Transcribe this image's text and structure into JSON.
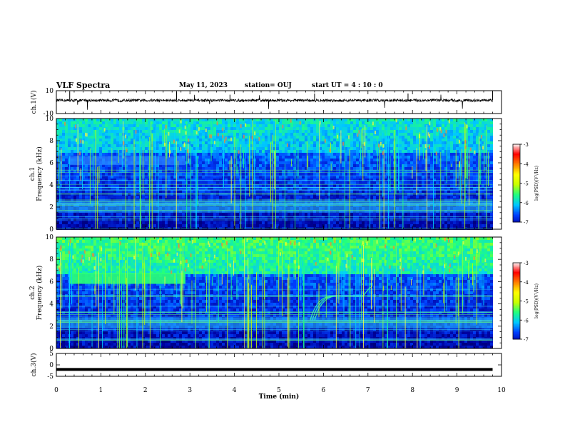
{
  "header": {
    "title": "VLF Spectra",
    "date": "May 11, 2023",
    "station": "station= OUJ",
    "start": "start  UT =  4 : 10 : 0"
  },
  "chart_data": [
    {
      "type": "line",
      "panel": "waveform-ch1",
      "ylabel": "ch.1(V)",
      "ylim": [
        -10,
        10
      ],
      "y_ticks": [
        "10",
        "-10"
      ],
      "xlim": [
        0,
        10
      ],
      "description_series": [
        {
          "name": "ch.1 amplitude",
          "baseline": 1.5,
          "noise": 1.0
        }
      ]
    },
    {
      "type": "heatmap",
      "panel": "spectrogram-ch1",
      "ylabel": [
        "ch.1",
        "Frequency  (kHz)"
      ],
      "ylim": [
        0,
        10
      ],
      "y_ticks": [
        "0",
        "2",
        "4",
        "6",
        "8",
        "10"
      ],
      "xlim": [
        0,
        10
      ],
      "band_features": [
        {
          "name": "hiss-band",
          "x_range": [
            0.3,
            2.9
          ],
          "f_range": [
            5.8,
            6.6
          ]
        },
        {
          "name": "low-band",
          "x_range": [
            0,
            9.8
          ],
          "f_range": [
            1.5,
            2.6
          ]
        }
      ],
      "colorbar": {
        "label": "log(PSD)(V²/Hz)",
        "range": [
          -7,
          -3
        ],
        "ticks": [
          "-3",
          "-4",
          "-5",
          "-6",
          "-7"
        ]
      }
    },
    {
      "type": "heatmap",
      "panel": "spectrogram-ch2",
      "ylabel": [
        "ch.2",
        "Frequency  (kHz)"
      ],
      "ylim": [
        0,
        10
      ],
      "y_ticks": [
        "0",
        "2",
        "4",
        "6",
        "8",
        "10"
      ],
      "xlim": [
        0,
        10
      ],
      "band_features": [
        {
          "name": "hiss-band",
          "x_range": [
            0.3,
            2.9
          ],
          "f_range": [
            5.8,
            6.8
          ]
        },
        {
          "name": "low-band",
          "x_range": [
            0,
            9.8
          ],
          "f_range": [
            1.8,
            2.8
          ]
        },
        {
          "name": "rising-tone",
          "x_range": [
            5.7,
            6.2
          ],
          "f_range": [
            2.5,
            4.7
          ]
        }
      ],
      "colorbar": {
        "label": "log(PSD)(V²/Hz)",
        "range": [
          -7,
          -3
        ],
        "ticks": [
          "-3",
          "-4",
          "-5",
          "-6",
          "-7"
        ]
      }
    },
    {
      "type": "line",
      "panel": "waveform-ch3",
      "ylabel": "ch.3(V)",
      "ylim": [
        -5,
        5
      ],
      "y_ticks": [
        "5",
        "0",
        "-5"
      ],
      "xlim": [
        0,
        10
      ],
      "description_series": [
        {
          "name": "ch.3 level",
          "value": -2.0
        }
      ]
    }
  ],
  "xaxis": {
    "label": "Time  (min)",
    "ticks": [
      "0",
      "1",
      "2",
      "3",
      "4",
      "5",
      "6",
      "7",
      "8",
      "9",
      "10"
    ],
    "range": [
      0,
      10
    ]
  },
  "colors": {
    "background": "#000044",
    "colormap": [
      "#00003a",
      "#0000a0",
      "#0040ff",
      "#00c8ff",
      "#20ff80",
      "#c8ff00",
      "#ffff00",
      "#ff8000",
      "#ff0000",
      "#ffffff"
    ]
  }
}
